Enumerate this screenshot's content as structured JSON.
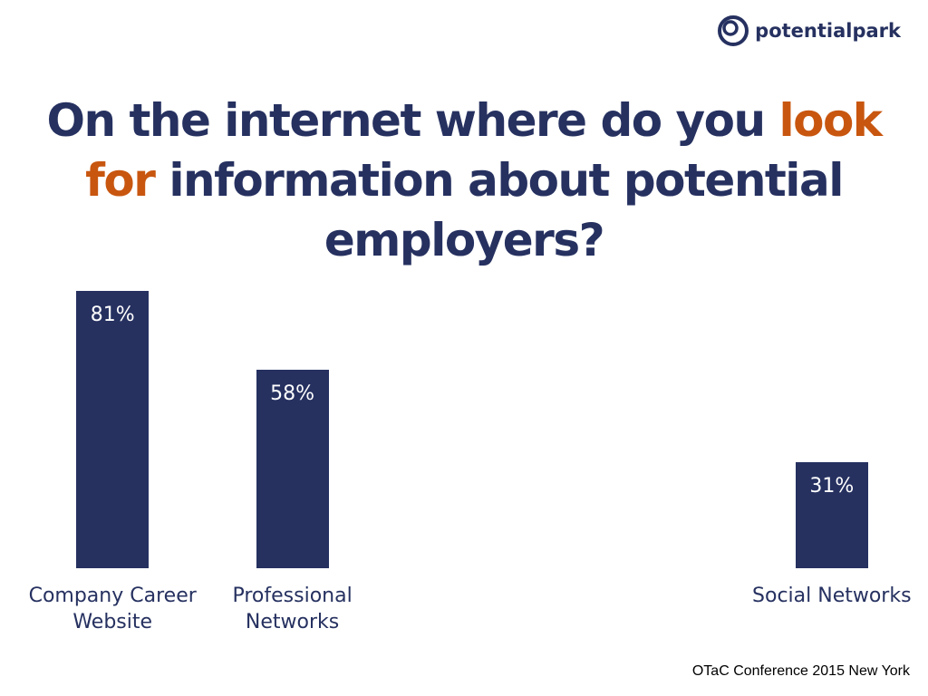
{
  "logo": "potentialpark",
  "footer": "OTaC Conference 2015 New York",
  "chart_data": {
    "type": "bar",
    "title": [
      "On the internet where do you",
      "look for",
      "information about potential employers?"
    ],
    "title_color": "#263160",
    "title_highlight_color": "#c8560f",
    "categories": [
      "Company Career Website",
      "Professional Networks",
      null,
      null,
      "Social Networks"
    ],
    "values": [
      81,
      58,
      null,
      null,
      31
    ],
    "value_labels": [
      "81%",
      "58%",
      null,
      null,
      "31%"
    ],
    "color": "#263160",
    "ylim": [
      0,
      100
    ]
  }
}
